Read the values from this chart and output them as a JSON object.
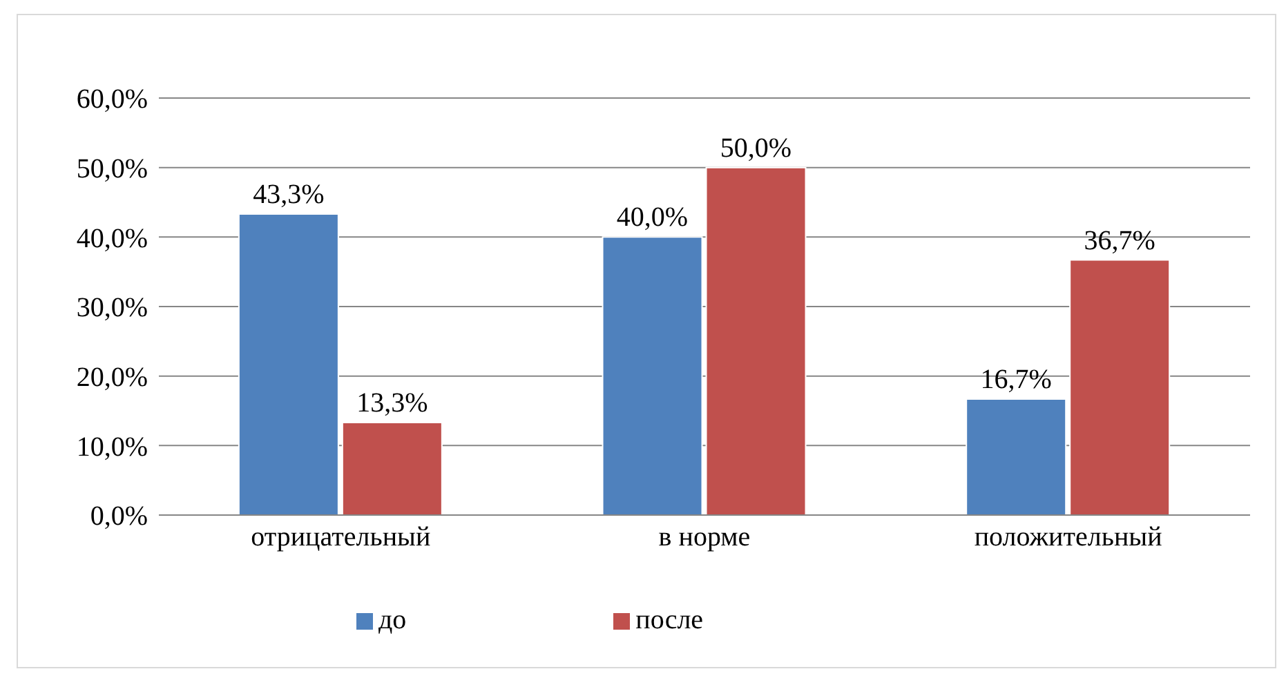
{
  "chart_data": {
    "type": "bar",
    "categories": [
      "отрицательный",
      "в норме",
      "положительный"
    ],
    "series": [
      {
        "name": "до",
        "color": "#4f81bd",
        "values": [
          43.3,
          40.0,
          16.7
        ],
        "value_labels": [
          "43,3%",
          "40,0%",
          "16,7%"
        ]
      },
      {
        "name": "после",
        "color": "#c0504d",
        "values": [
          13.3,
          50.0,
          36.7
        ],
        "value_labels": [
          "13,3%",
          "50,0%",
          "36,7%"
        ]
      }
    ],
    "ylim": [
      0,
      60
    ],
    "yticks": [
      {
        "value": 0,
        "label": "0,0%"
      },
      {
        "value": 10,
        "label": "10,0%"
      },
      {
        "value": 20,
        "label": "20,0%"
      },
      {
        "value": 30,
        "label": "30,0%"
      },
      {
        "value": 40,
        "label": "40,0%"
      },
      {
        "value": 50,
        "label": "50,0%"
      },
      {
        "value": 60,
        "label": "60,0%"
      }
    ],
    "grid": "y",
    "legend": "bottom"
  }
}
